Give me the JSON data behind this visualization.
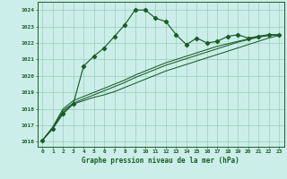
{
  "xlabel": "Graphe pression niveau de la mer (hPa)",
  "bg_color": "#cceee8",
  "grid_color": "#99ccbb",
  "line_color": "#1a5c2a",
  "ylim": [
    1015.7,
    1024.5
  ],
  "yticks": [
    1016,
    1017,
    1018,
    1019,
    1020,
    1021,
    1022,
    1023,
    1024
  ],
  "xlim": [
    -0.5,
    23.5
  ],
  "xticks": [
    0,
    1,
    2,
    3,
    4,
    5,
    6,
    7,
    8,
    9,
    10,
    11,
    12,
    13,
    14,
    15,
    16,
    17,
    18,
    19,
    20,
    21,
    22,
    23
  ],
  "series1_x": [
    0,
    1,
    2,
    3,
    4,
    5,
    6,
    7,
    8,
    9,
    10,
    11,
    12,
    13,
    14,
    15,
    16,
    17,
    18,
    19,
    20,
    21,
    22,
    23
  ],
  "series1_y": [
    1016.1,
    1016.8,
    1017.7,
    1018.3,
    1020.6,
    1021.2,
    1021.7,
    1022.4,
    1023.1,
    1024.0,
    1024.0,
    1023.5,
    1023.3,
    1022.5,
    1021.9,
    1022.3,
    1022.0,
    1022.1,
    1022.4,
    1022.5,
    1022.3,
    1022.4,
    1022.5,
    1022.5
  ],
  "series2_x": [
    0,
    1,
    2,
    3,
    4,
    5,
    6,
    7,
    8,
    9,
    10,
    11,
    12,
    13,
    14,
    15,
    16,
    17,
    18,
    19,
    20,
    21,
    22,
    23
  ],
  "series2_y": [
    1016.1,
    1016.8,
    1017.8,
    1018.3,
    1018.5,
    1018.7,
    1018.85,
    1019.05,
    1019.3,
    1019.55,
    1019.8,
    1020.05,
    1020.3,
    1020.5,
    1020.7,
    1020.9,
    1021.1,
    1021.3,
    1021.5,
    1021.7,
    1021.9,
    1022.1,
    1022.3,
    1022.45
  ],
  "series3_x": [
    0,
    1,
    2,
    3,
    4,
    5,
    6,
    7,
    8,
    9,
    10,
    11,
    12,
    13,
    14,
    15,
    16,
    17,
    18,
    19,
    20,
    21,
    22,
    23
  ],
  "series3_y": [
    1016.1,
    1016.85,
    1017.9,
    1018.35,
    1018.6,
    1018.85,
    1019.1,
    1019.35,
    1019.6,
    1019.9,
    1020.15,
    1020.4,
    1020.65,
    1020.85,
    1021.05,
    1021.25,
    1021.45,
    1021.65,
    1021.85,
    1022.05,
    1022.2,
    1022.35,
    1022.45,
    1022.5
  ],
  "series4_x": [
    0,
    1,
    2,
    3,
    4,
    5,
    6,
    7,
    8,
    9,
    10,
    11,
    12,
    13,
    14,
    15,
    16,
    17,
    18,
    19,
    20,
    21,
    22,
    23
  ],
  "series4_y": [
    1016.1,
    1016.9,
    1018.0,
    1018.5,
    1018.75,
    1019.0,
    1019.25,
    1019.5,
    1019.75,
    1020.05,
    1020.3,
    1020.55,
    1020.8,
    1021.0,
    1021.2,
    1021.4,
    1021.6,
    1021.8,
    1021.95,
    1022.1,
    1022.25,
    1022.4,
    1022.5,
    1022.5
  ]
}
